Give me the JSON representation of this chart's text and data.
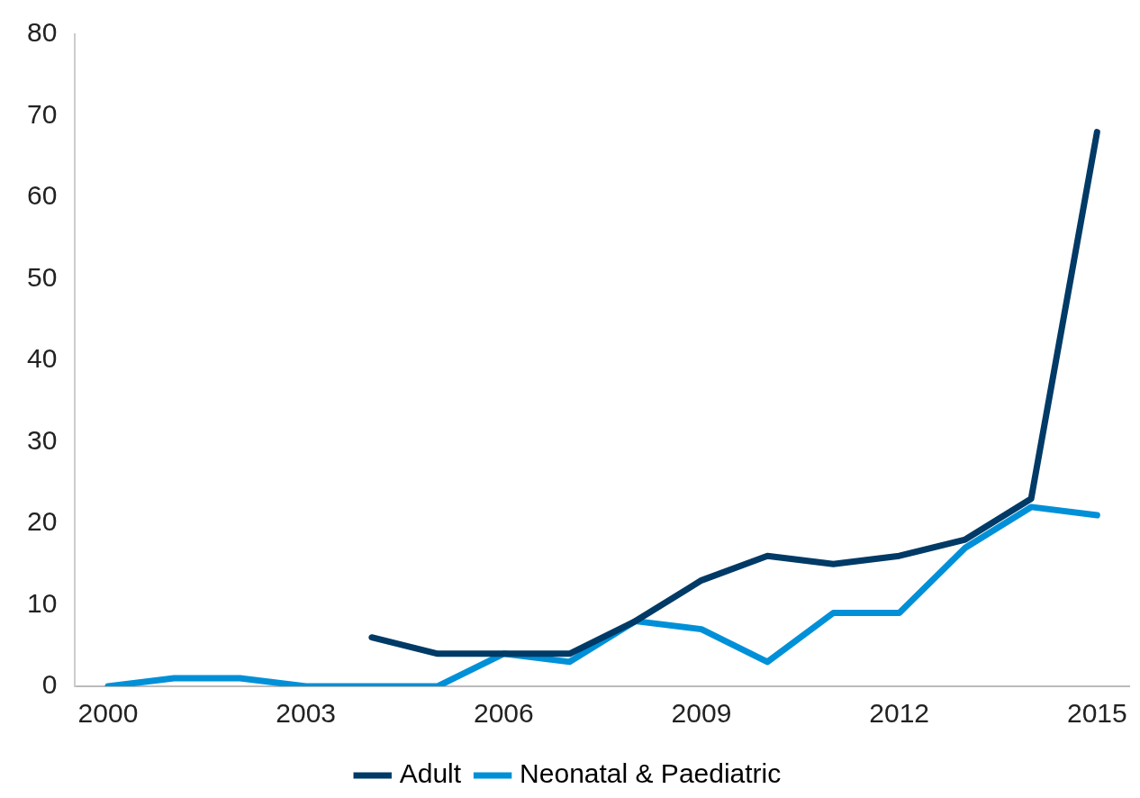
{
  "chart_data": {
    "type": "line",
    "categories": [
      "2000",
      null,
      null,
      "2003",
      null,
      null,
      "2006",
      null,
      null,
      "2009",
      null,
      null,
      "2012",
      null,
      null,
      "2015"
    ],
    "ylim": [
      0,
      80
    ],
    "yticks": [
      0,
      10,
      20,
      30,
      40,
      50,
      60,
      70,
      80
    ],
    "grid": false,
    "legend": "bottom",
    "marker": "none",
    "line_style": "solid",
    "series": [
      {
        "name": "Adult",
        "color": "#003a66",
        "values": [
          null,
          null,
          null,
          null,
          6,
          4,
          4,
          4,
          8,
          13,
          16,
          15,
          16,
          18,
          23,
          68
        ]
      },
      {
        "name": "Neonatal & Paediatric",
        "color": "#0090d8",
        "values": [
          0,
          1,
          1,
          0,
          0,
          0,
          4,
          3,
          8,
          7,
          3,
          9,
          9,
          17,
          22,
          21
        ]
      }
    ]
  }
}
